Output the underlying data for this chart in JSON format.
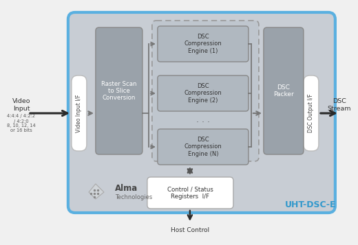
{
  "bg_outer": "#f0f0f0",
  "bg_main": "#c8cdd4",
  "bg_main_border": "#5ab0e0",
  "block_dark": "#9aa2aa",
  "block_medium": "#b0b8c0",
  "block_white": "#ffffff",
  "text_dark": "#333333",
  "text_white": "#ffffff",
  "text_blue": "#3399cc",
  "text_gray": "#555555",
  "arrow_dark": "#2a2a2a",
  "arrow_mid": "#777777",
  "uht_label": "UHT-DSC-E",
  "video_input_label": "Video\nInput",
  "video_input_sublabel": "4:4:4 / 4:2:2\n/ 4:2:0\n8, 10, 12, 14\nor 16 bits",
  "video_if_label": "Video Input I/F",
  "raster_label": "Raster Scan\nto Slice\nConversion",
  "dsc_engine1_label": "DSC\nCompression\nEngine (1)",
  "dsc_engine2_label": "DSC\nCompression\nEngine (2)",
  "dsc_engineN_label": "DSC\nCompression\nEngine (N)",
  "dsc_packer_label": "DSC\nPacker",
  "dsc_output_label": "DSC Output I/F",
  "dsc_stream_label": "DSC\nStream",
  "control_label": "Control / Status\nRegisters  I/F",
  "host_control_label": "Host Control",
  "alma_name": "Alma",
  "alma_sub": "Technologies"
}
